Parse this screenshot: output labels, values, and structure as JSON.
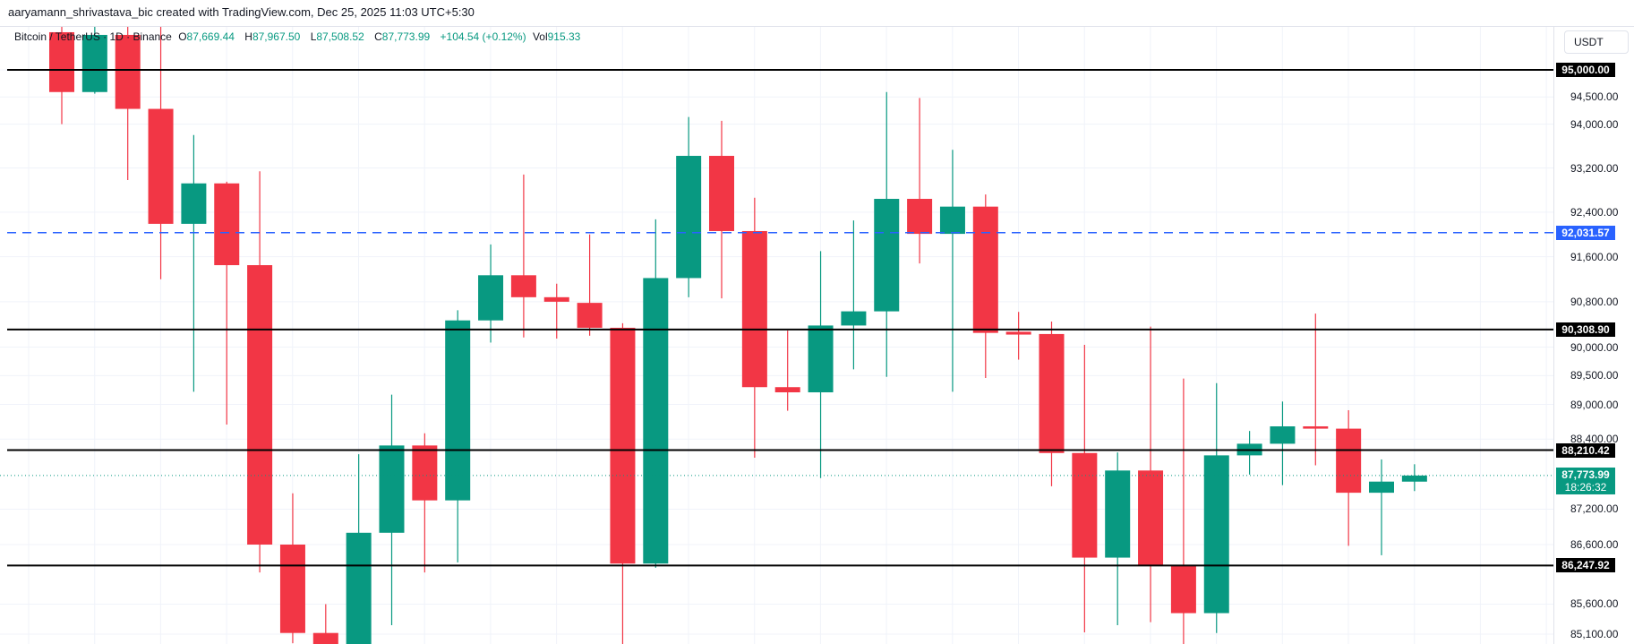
{
  "header": {
    "attribution": "aaryamann_shrivastava_bic created with TradingView.com, Dec 25, 2025 11:03 UTC+5:30"
  },
  "legend": {
    "symbol": "Bitcoin / TetherUS · 1D · Binance",
    "o_label": "O",
    "open": "87,669.44",
    "h_label": "H",
    "high": "87,967.50",
    "l_label": "L",
    "low": "87,508.52",
    "c_label": "C",
    "close": "87,773.99",
    "change": "+104.54 (+0.12%)",
    "vol_label": "Vol",
    "volume": "915.33"
  },
  "axis": {
    "unit": "USDT",
    "ticks": [
      "94,500.00",
      "94,000.00",
      "93,200.00",
      "92,400.00",
      "91,600.00",
      "90,800.00",
      "90,000.00",
      "89,500.00",
      "89,000.00",
      "88,400.00",
      "87,200.00",
      "86,600.00",
      "85,600.00",
      "85,100.00"
    ],
    "tick_values": [
      94500,
      94000,
      93200,
      92400,
      91600,
      90800,
      90000,
      89500,
      89000,
      88400,
      87200,
      86600,
      85600,
      85100
    ]
  },
  "colors": {
    "up": "#089981",
    "down": "#F23645",
    "level": "#000000",
    "dashed": "#2962FF"
  },
  "levels": [
    {
      "price": 95000,
      "label": "95,000.00",
      "style": "solid"
    },
    {
      "price": 90308.9,
      "label": "90,308.90",
      "style": "solid"
    },
    {
      "price": 88210.42,
      "label": "88,210.42",
      "style": "solid"
    },
    {
      "price": 86247.92,
      "label": "86,247.92",
      "style": "solid"
    },
    {
      "price": 92031.57,
      "label": "92,031.57",
      "style": "dashed"
    }
  ],
  "last_price": {
    "price": 87773.99,
    "label": "87,773.99",
    "countdown": "18:26:32"
  },
  "chart_data": {
    "type": "candlestick",
    "scale": "log",
    "ylim": [
      84900,
      96000
    ],
    "candles": [
      [
        95700,
        96000,
        94000,
        94590
      ],
      [
        94590,
        96000,
        94560,
        95650
      ],
      [
        95650,
        96200,
        92980,
        94280
      ],
      [
        94280,
        96300,
        91200,
        92190
      ],
      [
        92190,
        93800,
        89220,
        92920
      ],
      [
        92920,
        92950,
        88650,
        91450
      ],
      [
        91450,
        93140,
        86130,
        86600
      ],
      [
        86600,
        87470,
        84950,
        85120
      ],
      [
        85120,
        85600,
        84700,
        84800
      ],
      [
        84800,
        88140,
        84500,
        86800
      ],
      [
        86800,
        89170,
        85250,
        88290
      ],
      [
        88290,
        88500,
        86130,
        87350
      ],
      [
        87350,
        90650,
        86300,
        90470
      ],
      [
        90470,
        91820,
        90080,
        91270
      ],
      [
        91270,
        93080,
        90170,
        90880
      ],
      [
        90880,
        91120,
        90150,
        90800
      ],
      [
        90780,
        92000,
        90200,
        90340
      ],
      [
        90340,
        90420,
        84930,
        86280
      ],
      [
        86280,
        92270,
        86210,
        91220
      ],
      [
        91220,
        94130,
        90880,
        93420
      ],
      [
        93420,
        94060,
        90860,
        92060
      ],
      [
        92060,
        92660,
        88080,
        89300
      ],
      [
        89300,
        90290,
        88890,
        89210
      ],
      [
        89210,
        91700,
        87730,
        90380
      ],
      [
        90380,
        92250,
        89610,
        90630
      ],
      [
        90630,
        94590,
        89480,
        92640
      ],
      [
        92640,
        94480,
        91480,
        92010
      ],
      [
        92010,
        93530,
        89220,
        92500
      ],
      [
        92500,
        92720,
        89460,
        90250
      ],
      [
        90270,
        90620,
        89780,
        90220
      ],
      [
        90230,
        90450,
        87590,
        88160
      ],
      [
        88160,
        90040,
        85130,
        86380
      ],
      [
        86380,
        88170,
        85250,
        87860
      ],
      [
        87860,
        90360,
        85300,
        86260
      ],
      [
        86260,
        89450,
        84930,
        85450
      ],
      [
        85450,
        89370,
        85120,
        88120
      ],
      [
        88120,
        88540,
        87790,
        88320
      ],
      [
        88320,
        89050,
        87610,
        88620
      ],
      [
        88620,
        90590,
        87950,
        88580
      ],
      [
        88580,
        88900,
        86580,
        87480
      ],
      [
        87480,
        88050,
        86420,
        87670
      ],
      [
        87669.44,
        87967.5,
        87508.52,
        87773.99
      ]
    ]
  }
}
